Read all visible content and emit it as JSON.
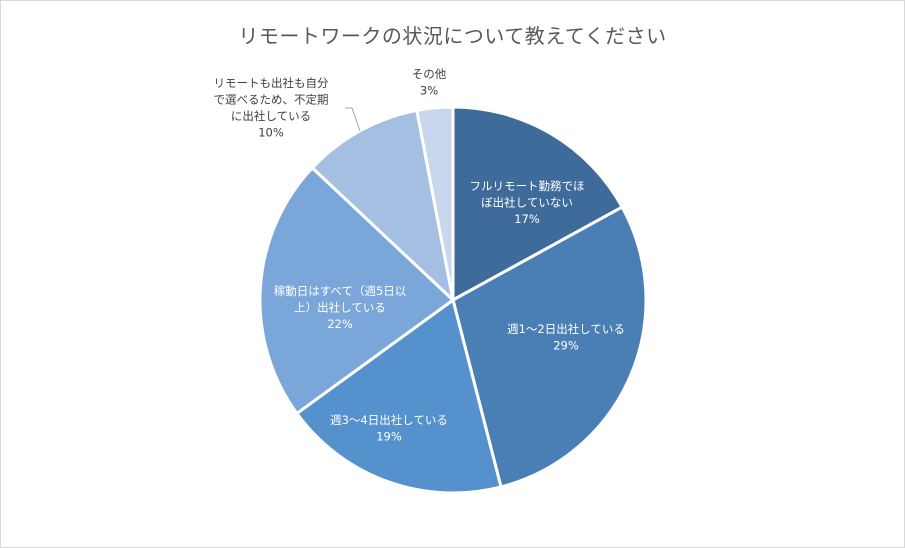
{
  "chart_data": {
    "type": "pie",
    "title": "リモートワークの状況について教えてください",
    "slices": [
      {
        "label_lines": [
          "フルリモート勤務でほ",
          "ぼ出社していない"
        ],
        "percent_label": "17%",
        "value": 17,
        "color": "#3e6b9a",
        "text_color": "#ffffff"
      },
      {
        "label_lines": [
          "週1～2日出社している"
        ],
        "percent_label": "29%",
        "value": 29,
        "color": "#4a7fb5",
        "text_color": "#ffffff"
      },
      {
        "label_lines": [
          "週3～4日出社している"
        ],
        "percent_label": "19%",
        "value": 19,
        "color": "#5591cc",
        "text_color": "#ffffff"
      },
      {
        "label_lines": [
          "稼動日はすべて（週5日以",
          "上）出社している"
        ],
        "percent_label": "22%",
        "value": 22,
        "color": "#7aa6d9",
        "text_color": "#ffffff"
      },
      {
        "label_lines": [
          "リモートも出社も自分",
          "で選べるため、不定期",
          "に出社している"
        ],
        "percent_label": "10%",
        "value": 10,
        "color": "#a5bfe3",
        "text_color": "#404040"
      },
      {
        "label_lines": [
          "その他"
        ],
        "percent_label": "3%",
        "value": 3,
        "color": "#c9d7ee",
        "text_color": "#404040"
      }
    ]
  }
}
